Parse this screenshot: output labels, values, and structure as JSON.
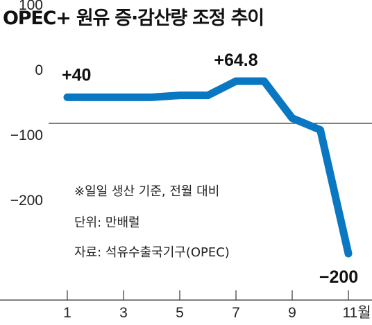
{
  "chart_data": {
    "type": "line",
    "title": "OPEC+ 원유 증·감산량 조정 추이",
    "x": [
      1,
      2,
      3,
      4,
      5,
      6,
      7,
      8,
      9,
      10,
      11
    ],
    "xticks": [
      "1",
      "3",
      "5",
      "7",
      "9",
      "11월"
    ],
    "xtick_values": [
      1,
      3,
      5,
      7,
      9,
      11
    ],
    "series": [
      {
        "values": [
          40,
          40,
          40,
          40,
          43,
          43,
          64.8,
          64.8,
          8,
          -10,
          -200
        ]
      }
    ],
    "ylim": [
      -280,
      110
    ],
    "yticks": [
      100,
      0,
      -100,
      -200
    ],
    "ytick_labels": [
      "100",
      "0",
      "−100",
      "−200"
    ],
    "data_labels": [
      {
        "x": 1,
        "y": 40,
        "text": "+40"
      },
      {
        "x": 7,
        "y": 64.8,
        "text": "+64.8"
      },
      {
        "x": 11,
        "y": -200,
        "text": "−200"
      }
    ],
    "annotations": [
      "※일일 생산 기준, 전월 대비",
      "단위: 만배럴",
      "자료: 석유수출국기구(OPEC)"
    ],
    "grid": false,
    "line_color": "#0a77c2"
  }
}
